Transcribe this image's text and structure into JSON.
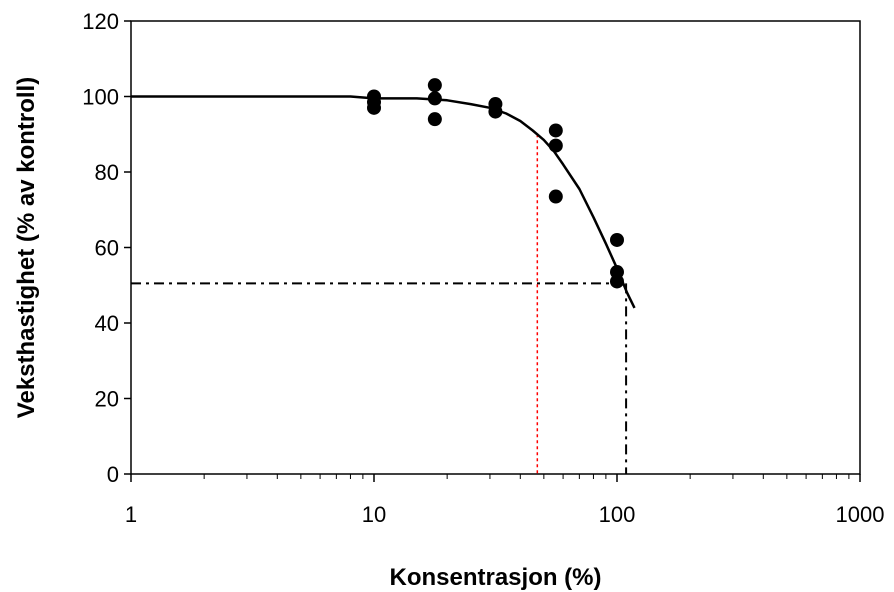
{
  "chart_data": {
    "type": "scatter",
    "xlabel": "Konsentrasjon (%)",
    "ylabel": "Veksthastighet (% av kontroll)",
    "xscale": "log",
    "xlim": [
      1,
      1000
    ],
    "ylim": [
      0,
      120
    ],
    "x_ticks": [
      1,
      10,
      100,
      1000
    ],
    "x_tick_labels": [
      "1",
      "10",
      "100",
      "1000"
    ],
    "y_ticks": [
      0,
      20,
      40,
      60,
      80,
      100,
      120
    ],
    "y_tick_labels": [
      "0",
      "20",
      "40",
      "60",
      "80",
      "100",
      "120"
    ],
    "grid": false,
    "colors": {
      "points": "#000000",
      "curve": "#000000",
      "ec50_line": "#000000",
      "ec10_line": "#ff0000"
    },
    "points": [
      {
        "x": 10,
        "y": 100
      },
      {
        "x": 10,
        "y": 98.5
      },
      {
        "x": 10,
        "y": 97
      },
      {
        "x": 17.8,
        "y": 103
      },
      {
        "x": 17.8,
        "y": 99.5
      },
      {
        "x": 17.8,
        "y": 94
      },
      {
        "x": 31.6,
        "y": 98
      },
      {
        "x": 31.6,
        "y": 96
      },
      {
        "x": 56,
        "y": 91
      },
      {
        "x": 56,
        "y": 87
      },
      {
        "x": 56,
        "y": 73.5
      },
      {
        "x": 100,
        "y": 62
      },
      {
        "x": 100,
        "y": 53.5
      },
      {
        "x": 100,
        "y": 51
      }
    ],
    "curve": [
      {
        "x": 1,
        "y": 100
      },
      {
        "x": 8,
        "y": 100
      },
      {
        "x": 10,
        "y": 99.5
      },
      {
        "x": 15,
        "y": 99.5
      },
      {
        "x": 20,
        "y": 99
      },
      {
        "x": 25,
        "y": 98
      },
      {
        "x": 30,
        "y": 97
      },
      {
        "x": 35,
        "y": 95.5
      },
      {
        "x": 40,
        "y": 93.5
      },
      {
        "x": 45,
        "y": 91
      },
      {
        "x": 50,
        "y": 88.5
      },
      {
        "x": 55,
        "y": 85.5
      },
      {
        "x": 60,
        "y": 82
      },
      {
        "x": 70,
        "y": 75.5
      },
      {
        "x": 80,
        "y": 68
      },
      {
        "x": 90,
        "y": 61
      },
      {
        "x": 100,
        "y": 54.5
      },
      {
        "x": 110,
        "y": 48
      },
      {
        "x": 118,
        "y": 44
      }
    ],
    "ec50_line": {
      "x": 109,
      "y": 50.5
    },
    "ec10_line": {
      "x": 47,
      "y": 90
    }
  }
}
